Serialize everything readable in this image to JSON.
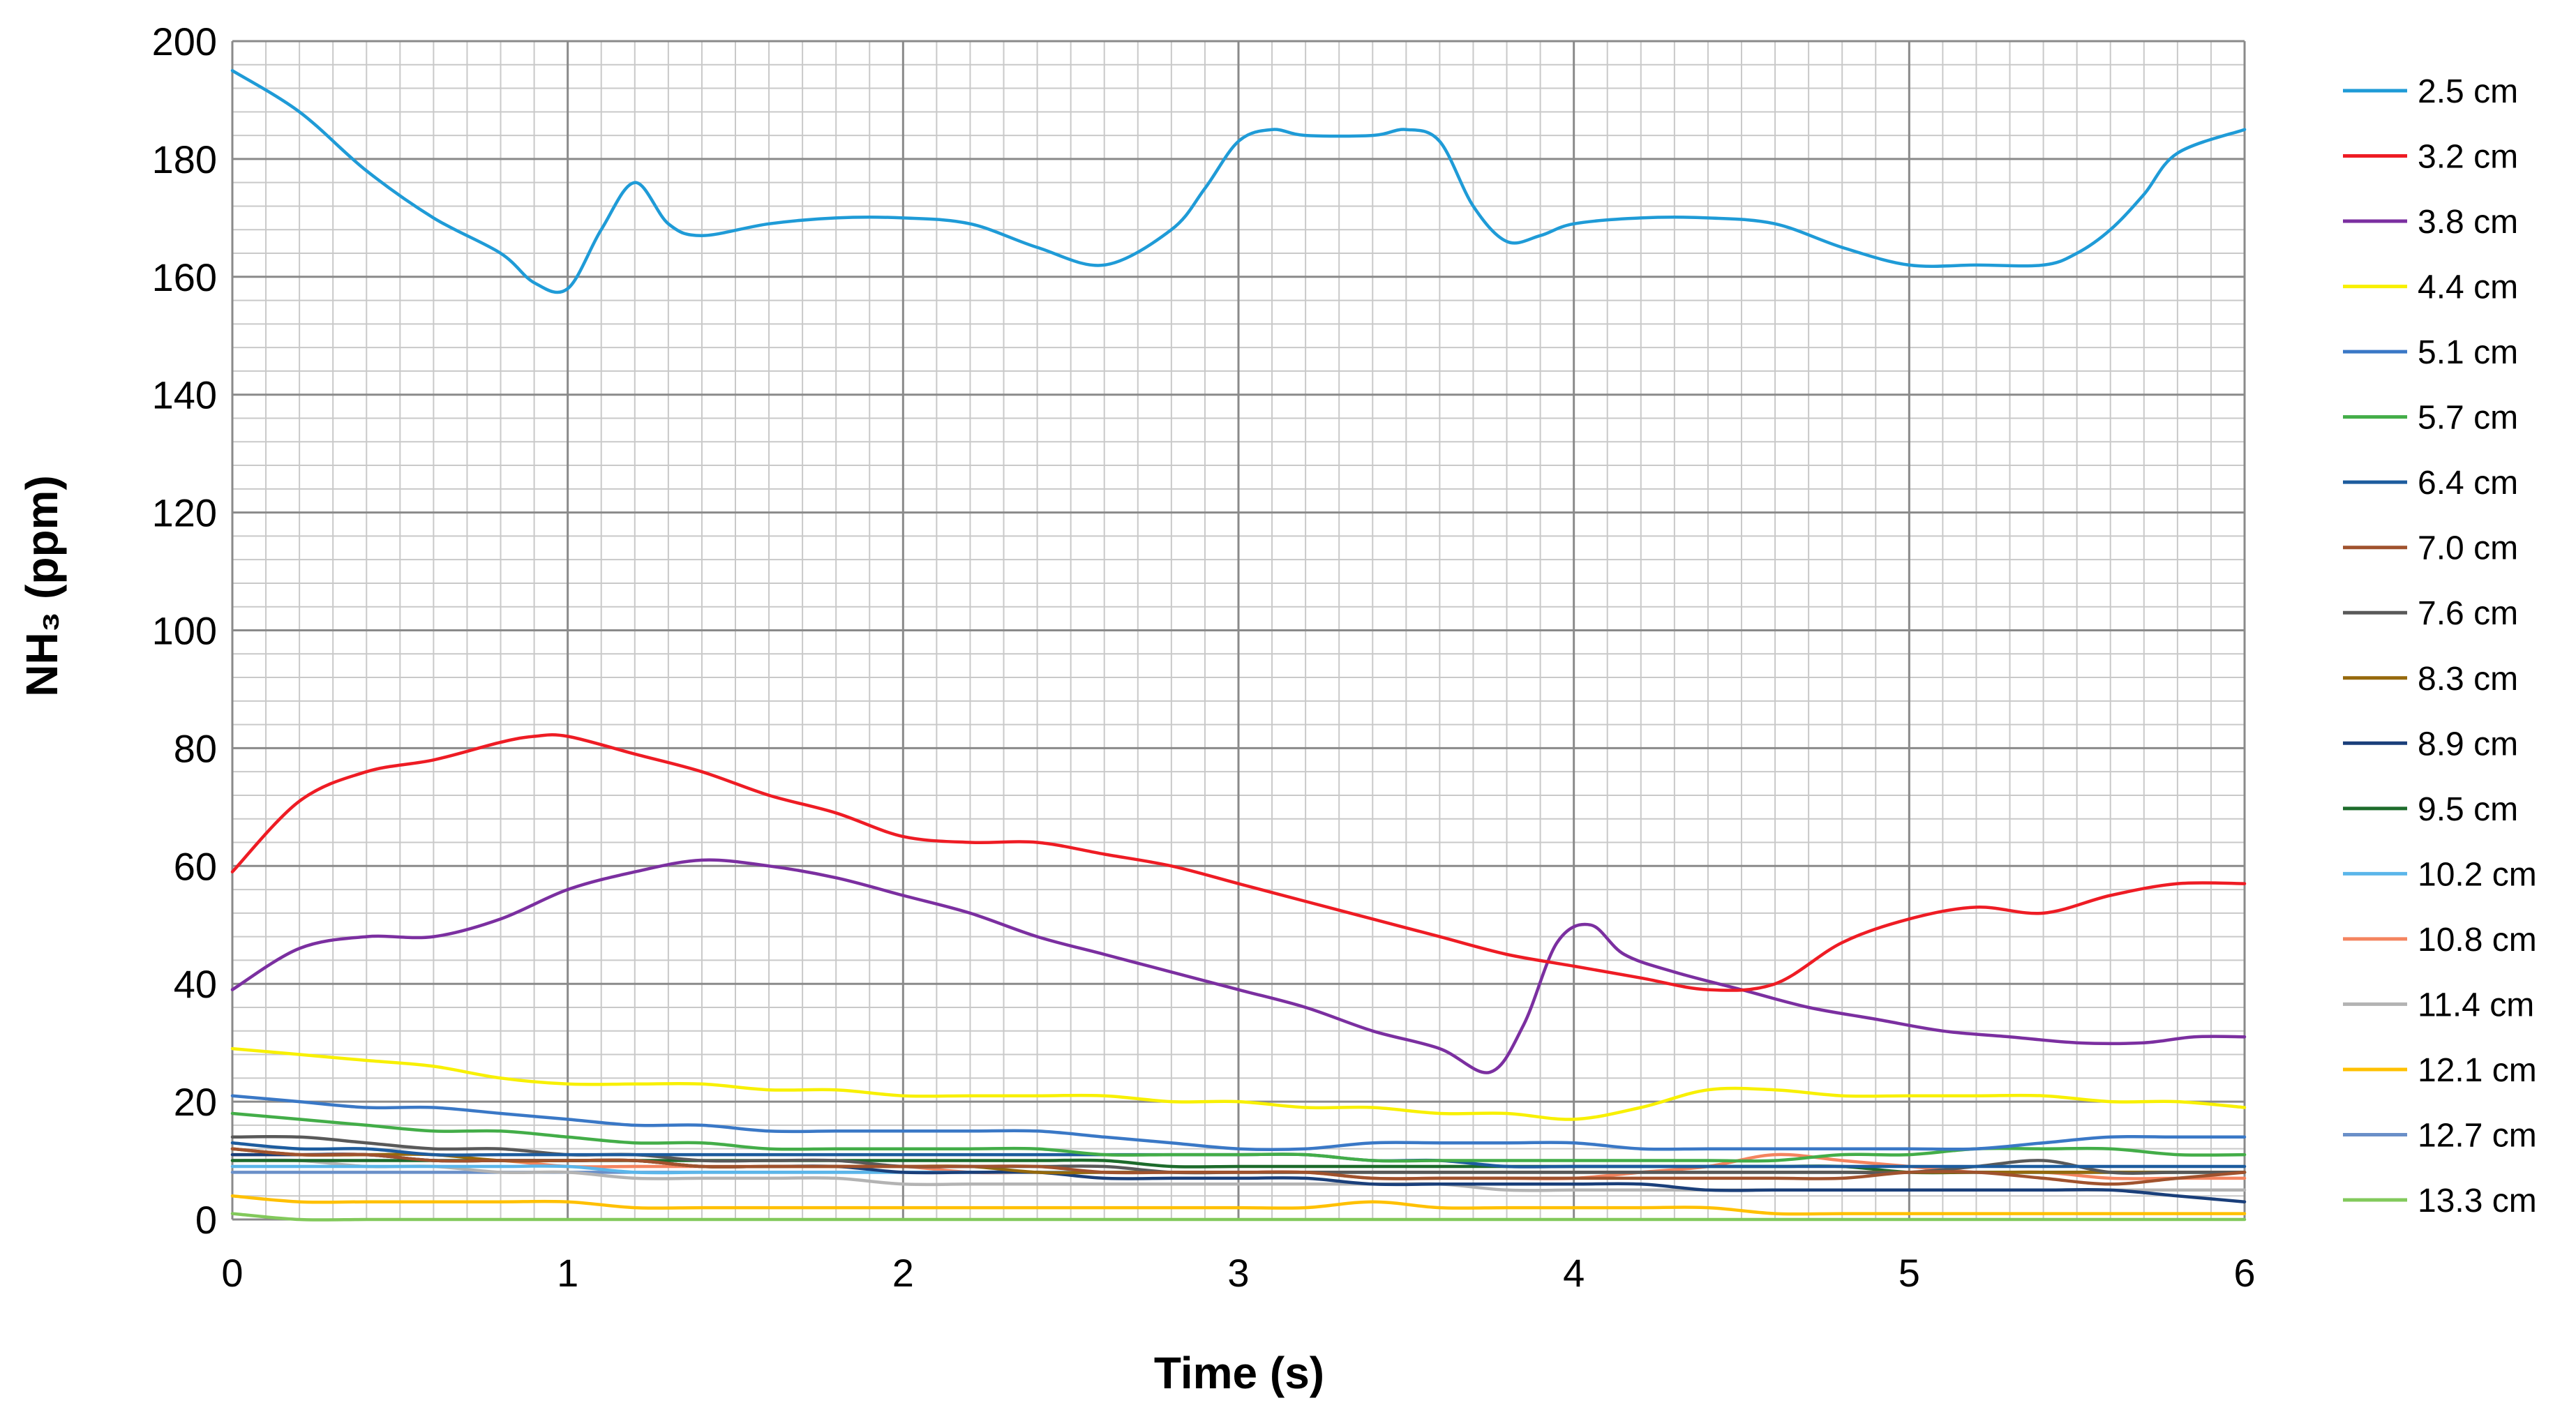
{
  "chart_data": {
    "type": "line",
    "title": "",
    "xlabel": "Time (s)",
    "ylabel": "NH₃ (ppm)",
    "xlim": [
      0,
      6
    ],
    "ylim": [
      0,
      200
    ],
    "x_ticks": [
      "0",
      "1",
      "2",
      "3",
      "4",
      "5",
      "6"
    ],
    "y_ticks": [
      "0",
      "20",
      "40",
      "60",
      "80",
      "100",
      "120",
      "140",
      "160",
      "180",
      "200"
    ],
    "grid": true,
    "legend_position": "right",
    "series": [
      {
        "name": "2.5 cm",
        "color": "#1f9bd7",
        "x": [
          0,
          0.2,
          0.4,
          0.6,
          0.8,
          0.9,
          1.0,
          1.1,
          1.2,
          1.3,
          1.4,
          1.6,
          1.8,
          2.0,
          2.2,
          2.4,
          2.6,
          2.8,
          2.9,
          3.0,
          3.1,
          3.2,
          3.4,
          3.5,
          3.6,
          3.7,
          3.8,
          3.9,
          4.0,
          4.2,
          4.4,
          4.6,
          4.8,
          5.0,
          5.2,
          5.4,
          5.5,
          5.6,
          5.7,
          5.8,
          6.0
        ],
        "y": [
          195,
          188,
          178,
          170,
          164,
          159,
          158,
          168,
          176,
          169,
          167,
          169,
          170,
          170,
          169,
          165,
          162,
          168,
          175,
          183,
          185,
          184,
          184,
          185,
          183,
          172,
          166,
          167,
          169,
          170,
          170,
          169,
          165,
          162,
          162,
          162,
          164,
          168,
          174,
          181,
          185
        ]
      },
      {
        "name": "3.2 cm",
        "color": "#ee1c24",
        "x": [
          0,
          0.2,
          0.4,
          0.6,
          0.8,
          0.9,
          1.0,
          1.2,
          1.4,
          1.6,
          1.8,
          2.0,
          2.2,
          2.4,
          2.6,
          2.8,
          3.0,
          3.2,
          3.4,
          3.6,
          3.8,
          4.0,
          4.2,
          4.4,
          4.6,
          4.8,
          5.0,
          5.2,
          5.4,
          5.6,
          5.8,
          6.0
        ],
        "y": [
          59,
          71,
          76,
          78,
          81,
          82,
          82,
          79,
          76,
          72,
          69,
          65,
          64,
          64,
          62,
          60,
          57,
          54,
          51,
          48,
          45,
          43,
          41,
          39,
          40,
          47,
          51,
          53,
          52,
          55,
          57,
          57
        ]
      },
      {
        "name": "3.8 cm",
        "color": "#7b2fa0",
        "x": [
          0,
          0.2,
          0.4,
          0.6,
          0.8,
          1.0,
          1.2,
          1.4,
          1.6,
          1.8,
          2.0,
          2.2,
          2.4,
          2.6,
          2.8,
          3.0,
          3.2,
          3.4,
          3.6,
          3.75,
          3.85,
          3.95,
          4.05,
          4.15,
          4.3,
          4.5,
          4.7,
          4.9,
          5.1,
          5.3,
          5.5,
          5.7,
          5.85,
          6.0
        ],
        "y": [
          39,
          46,
          48,
          48,
          51,
          56,
          59,
          61,
          60,
          58,
          55,
          52,
          48,
          45,
          42,
          39,
          36,
          32,
          29,
          25,
          33,
          47,
          50,
          45,
          42,
          39,
          36,
          34,
          32,
          31,
          30,
          30,
          31,
          31
        ]
      },
      {
        "name": "4.4 cm",
        "color": "#f8f000",
        "x": [
          0,
          0.2,
          0.4,
          0.6,
          0.8,
          1.0,
          1.2,
          1.4,
          1.6,
          1.8,
          2.0,
          2.2,
          2.4,
          2.6,
          2.8,
          3.0,
          3.2,
          3.4,
          3.6,
          3.8,
          4.0,
          4.2,
          4.4,
          4.6,
          4.8,
          5.0,
          5.2,
          5.4,
          5.6,
          5.8,
          6.0
        ],
        "y": [
          29,
          28,
          27,
          26,
          24,
          23,
          23,
          23,
          22,
          22,
          21,
          21,
          21,
          21,
          20,
          20,
          19,
          19,
          18,
          18,
          17,
          19,
          22,
          22,
          21,
          21,
          21,
          21,
          20,
          20,
          19
        ]
      },
      {
        "name": "5.1 cm",
        "color": "#3a78c6",
        "x": [
          0,
          0.2,
          0.4,
          0.6,
          0.8,
          1.0,
          1.2,
          1.4,
          1.6,
          1.8,
          2.0,
          2.2,
          2.4,
          2.6,
          2.8,
          3.0,
          3.2,
          3.4,
          3.6,
          3.8,
          4.0,
          4.2,
          4.4,
          4.6,
          4.8,
          5.0,
          5.2,
          5.4,
          5.6,
          5.8,
          6.0
        ],
        "y": [
          21,
          20,
          19,
          19,
          18,
          17,
          16,
          16,
          15,
          15,
          15,
          15,
          15,
          14,
          13,
          12,
          12,
          13,
          13,
          13,
          13,
          12,
          12,
          12,
          12,
          12,
          12,
          13,
          14,
          14,
          14
        ]
      },
      {
        "name": "5.7 cm",
        "color": "#43ad48",
        "x": [
          0,
          0.2,
          0.4,
          0.6,
          0.8,
          1.0,
          1.2,
          1.4,
          1.6,
          1.8,
          2.0,
          2.2,
          2.4,
          2.6,
          2.8,
          3.0,
          3.2,
          3.4,
          3.6,
          3.8,
          4.0,
          4.2,
          4.4,
          4.6,
          4.8,
          5.0,
          5.2,
          5.4,
          5.6,
          5.8,
          6.0
        ],
        "y": [
          18,
          17,
          16,
          15,
          15,
          14,
          13,
          13,
          12,
          12,
          12,
          12,
          12,
          11,
          11,
          11,
          11,
          10,
          10,
          10,
          10,
          10,
          10,
          10,
          11,
          11,
          12,
          12,
          12,
          11,
          11
        ]
      },
      {
        "name": "6.4 cm",
        "color": "#1d5c9e",
        "x": [
          0,
          0.2,
          0.4,
          0.6,
          0.8,
          1.0,
          1.2,
          1.4,
          1.6,
          1.8,
          2.0,
          2.2,
          2.4,
          2.6,
          2.8,
          3.0,
          3.2,
          3.4,
          3.6,
          3.8,
          4.0,
          4.2,
          4.4,
          4.6,
          4.8,
          5.0,
          5.2,
          5.4,
          5.6,
          5.8,
          6.0
        ],
        "y": [
          13,
          12,
          12,
          11,
          11,
          11,
          11,
          11,
          11,
          11,
          11,
          11,
          11,
          11,
          11,
          11,
          11,
          10,
          10,
          9,
          9,
          9,
          9,
          9,
          9,
          9,
          9,
          9,
          9,
          9,
          9
        ]
      },
      {
        "name": "7.0 cm",
        "color": "#a0522d",
        "x": [
          0,
          0.2,
          0.4,
          0.6,
          0.8,
          1.0,
          1.2,
          1.4,
          1.6,
          1.8,
          2.0,
          2.2,
          2.4,
          2.6,
          2.8,
          3.0,
          3.2,
          3.4,
          3.6,
          3.8,
          4.0,
          4.2,
          4.4,
          4.6,
          4.8,
          5.0,
          5.2,
          5.4,
          5.6,
          5.8,
          6.0
        ],
        "y": [
          12,
          11,
          11,
          10,
          10,
          10,
          10,
          9,
          9,
          9,
          9,
          9,
          9,
          8,
          8,
          8,
          8,
          7,
          7,
          7,
          7,
          7,
          7,
          7,
          7,
          8,
          8,
          7,
          6,
          7,
          8
        ]
      },
      {
        "name": "7.6 cm",
        "color": "#595959",
        "x": [
          0,
          0.2,
          0.4,
          0.6,
          0.8,
          1.0,
          1.2,
          1.4,
          1.6,
          1.8,
          2.0,
          2.2,
          2.4,
          2.6,
          2.8,
          3.0,
          3.2,
          3.4,
          3.6,
          3.8,
          4.0,
          4.2,
          4.4,
          4.6,
          4.8,
          5.0,
          5.2,
          5.4,
          5.6,
          5.8,
          6.0
        ],
        "y": [
          14,
          14,
          13,
          12,
          12,
          11,
          11,
          10,
          10,
          10,
          9,
          9,
          9,
          9,
          8,
          8,
          8,
          8,
          8,
          8,
          8,
          8,
          8,
          8,
          8,
          8,
          9,
          10,
          8,
          8,
          8
        ]
      },
      {
        "name": "8.3 cm",
        "color": "#96690c",
        "x": [
          0,
          0.2,
          0.4,
          0.6,
          0.8,
          1.0,
          1.2,
          1.4,
          1.6,
          1.8,
          2.0,
          2.2,
          2.4,
          2.6,
          2.8,
          3.0,
          3.2,
          3.4,
          3.6,
          3.8,
          4.0,
          4.2,
          4.4,
          4.6,
          4.8,
          5.0,
          5.2,
          5.4,
          5.6,
          5.8,
          6.0
        ],
        "y": [
          12,
          11,
          11,
          11,
          10,
          10,
          10,
          9,
          9,
          9,
          9,
          9,
          8,
          8,
          8,
          8,
          8,
          8,
          8,
          8,
          8,
          8,
          8,
          8,
          8,
          8,
          8,
          8,
          8,
          8,
          8
        ]
      },
      {
        "name": "8.9 cm",
        "color": "#1a3f7a",
        "x": [
          0,
          0.2,
          0.4,
          0.6,
          0.8,
          1.0,
          1.2,
          1.4,
          1.6,
          1.8,
          2.0,
          2.2,
          2.4,
          2.6,
          2.8,
          3.0,
          3.2,
          3.4,
          3.6,
          3.8,
          4.0,
          4.2,
          4.4,
          4.6,
          4.8,
          5.0,
          5.2,
          5.4,
          5.6,
          5.8,
          6.0
        ],
        "y": [
          11,
          11,
          11,
          10,
          10,
          10,
          10,
          9,
          9,
          9,
          8,
          8,
          8,
          7,
          7,
          7,
          7,
          6,
          6,
          6,
          6,
          6,
          5,
          5,
          5,
          5,
          5,
          5,
          5,
          4,
          3
        ]
      },
      {
        "name": "9.5 cm",
        "color": "#1d6b2b",
        "x": [
          0,
          0.2,
          0.4,
          0.6,
          0.8,
          1.0,
          1.2,
          1.4,
          1.6,
          1.8,
          2.0,
          2.2,
          2.4,
          2.6,
          2.8,
          3.0,
          3.2,
          3.4,
          3.6,
          3.8,
          4.0,
          4.2,
          4.4,
          4.6,
          4.8,
          5.0,
          5.2,
          5.4,
          5.6,
          5.8,
          6.0
        ],
        "y": [
          10,
          10,
          10,
          10,
          10,
          10,
          10,
          10,
          10,
          10,
          10,
          10,
          10,
          10,
          9,
          9,
          9,
          9,
          9,
          9,
          9,
          9,
          9,
          9,
          9,
          8,
          8,
          8,
          8,
          8,
          8
        ]
      },
      {
        "name": "10.2 cm",
        "color": "#5bb6ea",
        "x": [
          0,
          0.2,
          0.4,
          0.6,
          0.8,
          1.0,
          1.2,
          1.4,
          1.6,
          1.8,
          2.0,
          2.2,
          2.4,
          2.6,
          2.8,
          3.0,
          3.2,
          3.4,
          3.6,
          3.8,
          4.0,
          4.2,
          4.4,
          4.6,
          4.8,
          5.0,
          5.2,
          5.4,
          5.6,
          5.8,
          6.0
        ],
        "y": [
          9,
          9,
          9,
          9,
          9,
          9,
          8,
          8,
          8,
          8,
          8,
          8,
          8,
          8,
          8,
          8,
          8,
          8,
          8,
          8,
          8,
          8,
          8,
          8,
          8,
          8,
          8,
          8,
          8,
          8,
          8
        ]
      },
      {
        "name": "10.8 cm",
        "color": "#f4845f",
        "x": [
          0,
          0.2,
          0.4,
          0.6,
          0.8,
          1.0,
          1.2,
          1.4,
          1.6,
          1.8,
          2.0,
          2.2,
          2.4,
          2.6,
          2.8,
          3.0,
          3.2,
          3.4,
          3.6,
          3.8,
          4.0,
          4.2,
          4.4,
          4.6,
          4.8,
          5.0,
          5.2,
          5.4,
          5.6,
          5.8,
          6.0
        ],
        "y": [
          11,
          11,
          11,
          10,
          10,
          9,
          9,
          9,
          9,
          9,
          9,
          8,
          8,
          8,
          8,
          8,
          8,
          7,
          7,
          7,
          7,
          8,
          9,
          11,
          10,
          9,
          8,
          8,
          7,
          7,
          7
        ]
      },
      {
        "name": "11.4 cm",
        "color": "#b3b3b3",
        "x": [
          0,
          0.2,
          0.4,
          0.6,
          0.8,
          1.0,
          1.2,
          1.4,
          1.6,
          1.8,
          2.0,
          2.2,
          2.4,
          2.6,
          2.8,
          3.0,
          3.2,
          3.4,
          3.6,
          3.8,
          4.0,
          4.2,
          4.4,
          4.6,
          4.8,
          5.0,
          5.2,
          5.4,
          5.6,
          5.8,
          6.0
        ],
        "y": [
          10,
          10,
          9,
          9,
          8,
          8,
          7,
          7,
          7,
          7,
          6,
          6,
          6,
          6,
          6,
          6,
          6,
          6,
          6,
          5,
          5,
          5,
          5,
          5,
          5,
          5,
          5,
          5,
          5,
          5,
          5
        ]
      },
      {
        "name": "12.1 cm",
        "color": "#ffc000",
        "x": [
          0,
          0.2,
          0.4,
          0.6,
          0.8,
          1.0,
          1.2,
          1.4,
          1.6,
          1.8,
          2.0,
          2.2,
          2.4,
          2.6,
          2.8,
          3.0,
          3.2,
          3.4,
          3.6,
          3.8,
          4.0,
          4.2,
          4.4,
          4.6,
          4.8,
          5.0,
          5.2,
          5.4,
          5.6,
          5.8,
          6.0
        ],
        "y": [
          4,
          3,
          3,
          3,
          3,
          3,
          2,
          2,
          2,
          2,
          2,
          2,
          2,
          2,
          2,
          2,
          2,
          3,
          2,
          2,
          2,
          2,
          2,
          1,
          1,
          1,
          1,
          1,
          1,
          1,
          1
        ]
      },
      {
        "name": "12.7 cm",
        "color": "#6a8fc8",
        "x": [
          0,
          0.2,
          0.4,
          0.6,
          0.8,
          1.0,
          1.2,
          1.4,
          1.6,
          1.8,
          2.0,
          2.2,
          2.4,
          2.6,
          2.8,
          3.0,
          3.2,
          3.4,
          3.6,
          3.8,
          4.0,
          4.2,
          4.4,
          4.6,
          4.8,
          5.0,
          5.2,
          5.4,
          5.6,
          5.8,
          6.0
        ],
        "y": [
          8,
          8,
          8,
          8,
          8,
          8,
          8,
          8,
          8,
          8,
          8,
          8,
          8,
          8,
          8,
          8,
          8,
          8,
          8,
          8,
          8,
          8,
          8,
          8,
          8,
          8,
          8,
          8,
          8,
          8,
          8
        ]
      },
      {
        "name": "13.3 cm",
        "color": "#82c95b",
        "x": [
          0,
          0.2,
          0.4,
          0.6,
          0.8,
          1.0,
          1.2,
          1.4,
          1.6,
          1.8,
          2.0,
          2.2,
          2.4,
          2.6,
          2.8,
          3.0,
          3.2,
          3.4,
          3.6,
          3.8,
          4.0,
          4.2,
          4.4,
          4.6,
          4.8,
          5.0,
          5.2,
          5.4,
          5.6,
          5.8,
          6.0
        ],
        "y": [
          1,
          0,
          0,
          0,
          0,
          0,
          0,
          0,
          0,
          0,
          0,
          0,
          0,
          0,
          0,
          0,
          0,
          0,
          0,
          0,
          0,
          0,
          0,
          0,
          0,
          0,
          0,
          0,
          0,
          0,
          0
        ]
      }
    ]
  }
}
